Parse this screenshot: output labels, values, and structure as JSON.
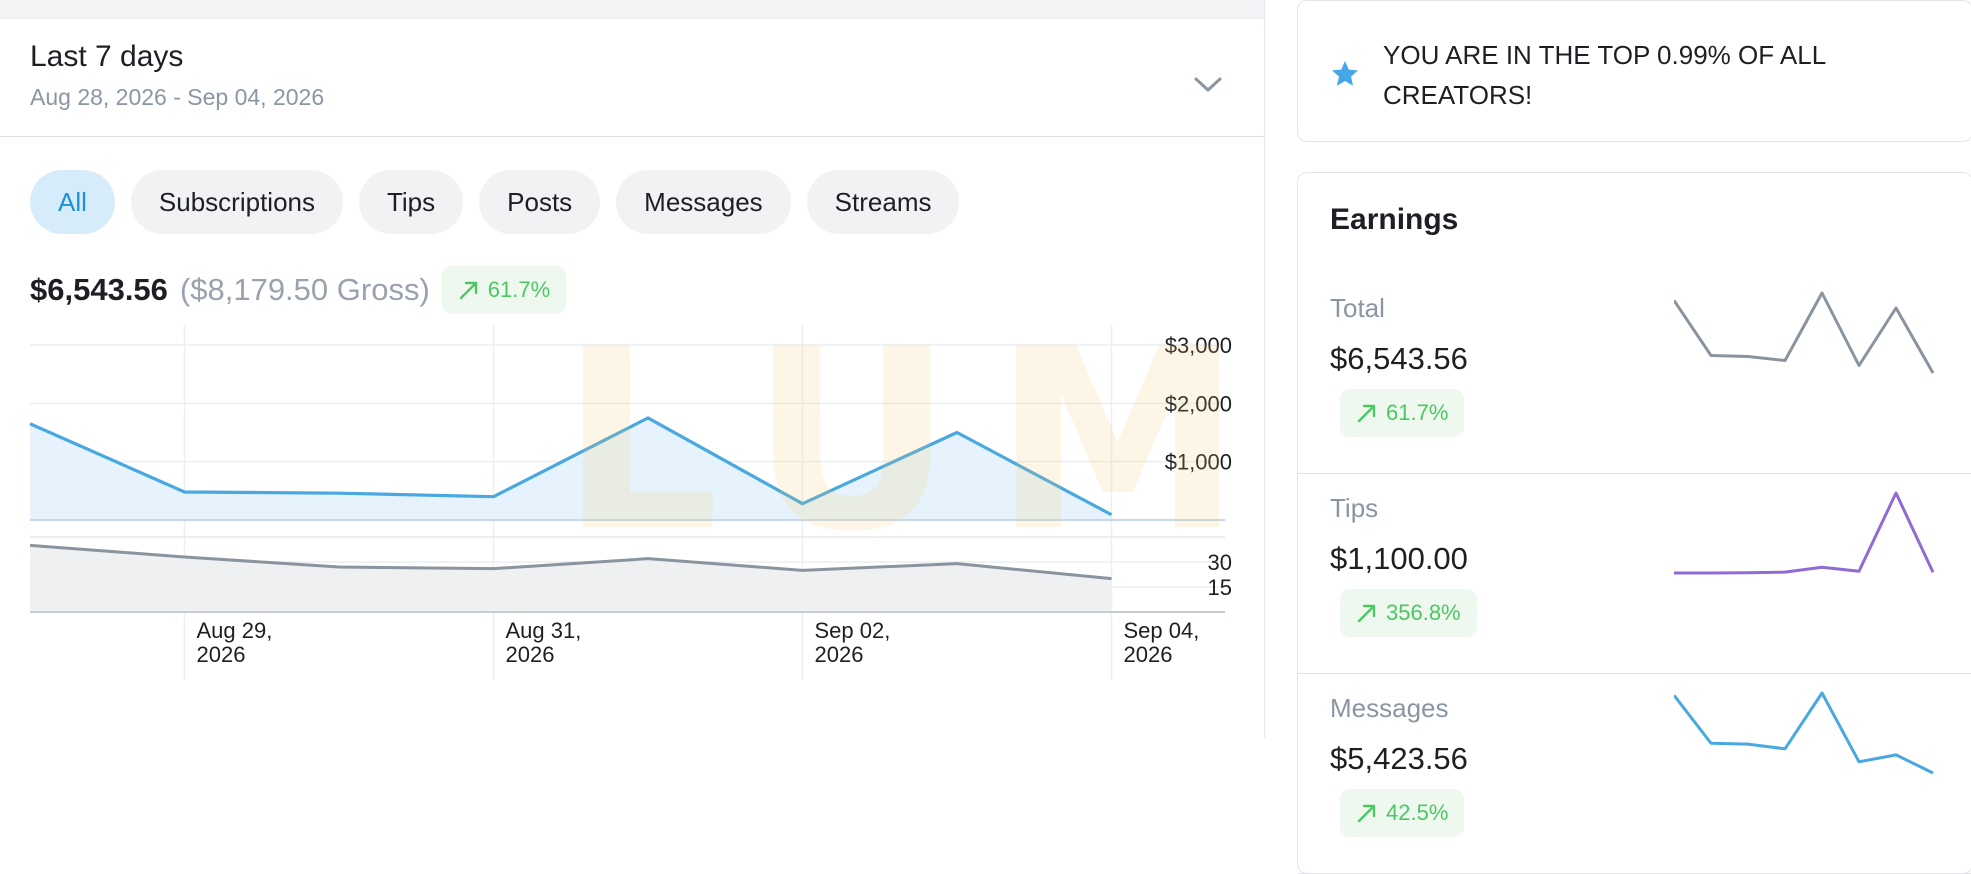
{
  "period": {
    "title": "Last 7 days",
    "range": "Aug 28, 2026 - Sep 04, 2026"
  },
  "filters": [
    {
      "label": "All",
      "active": true
    },
    {
      "label": "Subscriptions",
      "active": false
    },
    {
      "label": "Tips",
      "active": false
    },
    {
      "label": "Posts",
      "active": false
    },
    {
      "label": "Messages",
      "active": false
    },
    {
      "label": "Streams",
      "active": false
    }
  ],
  "summary": {
    "net": "$6,543.56",
    "gross": "($8,179.50 Gross)",
    "change": "61.7%"
  },
  "watermark": "LUMEN",
  "chart_data": {
    "type": "area",
    "x": [
      "Aug 28, 2026",
      "Aug 29, 2026",
      "Aug 30, 2026",
      "Aug 31, 2026",
      "Sep 01, 2026",
      "Sep 02, 2026",
      "Sep 03, 2026",
      "Sep 04, 2026"
    ],
    "x_tick_labels": [
      {
        "index": 1,
        "lines": [
          "Aug 29,",
          "2026"
        ]
      },
      {
        "index": 3,
        "lines": [
          "Aug 31,",
          "2026"
        ]
      },
      {
        "index": 5,
        "lines": [
          "Sep 02,",
          "2026"
        ]
      },
      {
        "index": 7,
        "lines": [
          "Sep 04,",
          "2026"
        ]
      }
    ],
    "series": [
      {
        "values": [
          1650,
          480,
          460,
          400,
          1750,
          280,
          1500,
          90
        ],
        "color": "#4aa8e0"
      },
      {
        "values": [
          40,
          33,
          27,
          26,
          32,
          25,
          29,
          20
        ],
        "color": "#8a949e"
      }
    ],
    "y_ticks_top": [
      "$3,000",
      "$2,000",
      "$1,000"
    ],
    "y_ticks_bottom": [
      "30",
      "15"
    ],
    "ylim_top": [
      0,
      3000
    ],
    "ylim_bottom": [
      0,
      45
    ]
  },
  "banner": {
    "icon": "star-icon",
    "text": "YOU ARE IN THE TOP 0.99% OF ALL CREATORS!"
  },
  "earnings": {
    "title": "Earnings",
    "rows": [
      {
        "label": "Total",
        "amount": "$6,543.56",
        "change": "61.7%",
        "color": "#8a949e",
        "spark": [
          2300,
          1200,
          1180,
          1100,
          2450,
          1000,
          2150,
          850
        ]
      },
      {
        "label": "Tips",
        "amount": "$1,100.00",
        "change": "356.8%",
        "color": "#8f6bd3",
        "spark": [
          0,
          0,
          2,
          6,
          40,
          12,
          560,
          5
        ]
      },
      {
        "label": "Messages",
        "amount": "$5,423.56",
        "change": "42.5%",
        "color": "#4aa8e0",
        "spark": [
          1850,
          820,
          800,
          700,
          1900,
          420,
          570,
          180
        ]
      }
    ]
  },
  "colors": {
    "accent": "#1b93d9",
    "positive": "#4cc764",
    "muted": "#8a96a3"
  }
}
